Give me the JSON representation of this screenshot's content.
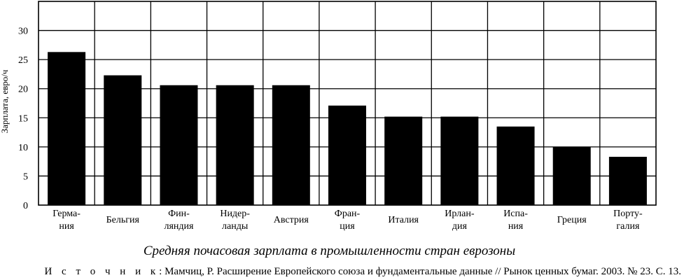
{
  "chart_data": {
    "type": "bar",
    "ylabel": "Зарплата, евро/ч",
    "ylim": [
      0,
      35
    ],
    "yticks": [
      0,
      5,
      10,
      15,
      20,
      25,
      30
    ],
    "ytick_labels": [
      "0",
      "5",
      "10",
      "15",
      "20",
      "25",
      "30"
    ],
    "grid": true,
    "categories": [
      [
        "Герма-",
        "ния"
      ],
      [
        "Бельгия"
      ],
      [
        "Фин-",
        "ляндия"
      ],
      [
        "Нидер-",
        "ланды"
      ],
      [
        "Австрия"
      ],
      [
        "Фран-",
        "ция"
      ],
      [
        "Италия"
      ],
      [
        "Ирлан-",
        "дия"
      ],
      [
        "Испа-",
        "ния"
      ],
      [
        "Греция"
      ],
      [
        "Порту-",
        "галия"
      ]
    ],
    "values": [
      26.3,
      22.3,
      20.6,
      20.6,
      20.6,
      17.1,
      15.2,
      15.2,
      13.5,
      10.0,
      8.3
    ],
    "bar_color": "#000000"
  },
  "caption": "Средняя почасовая зарплата в промышленности стран еврозоны",
  "source": {
    "label": "И с т о ч н и к",
    "text": ": Мамчиц, Р. Расширение Европейского союза и фундаментальные данные // Рынок ценных бумаг. 2003. № 23. С. 13."
  }
}
